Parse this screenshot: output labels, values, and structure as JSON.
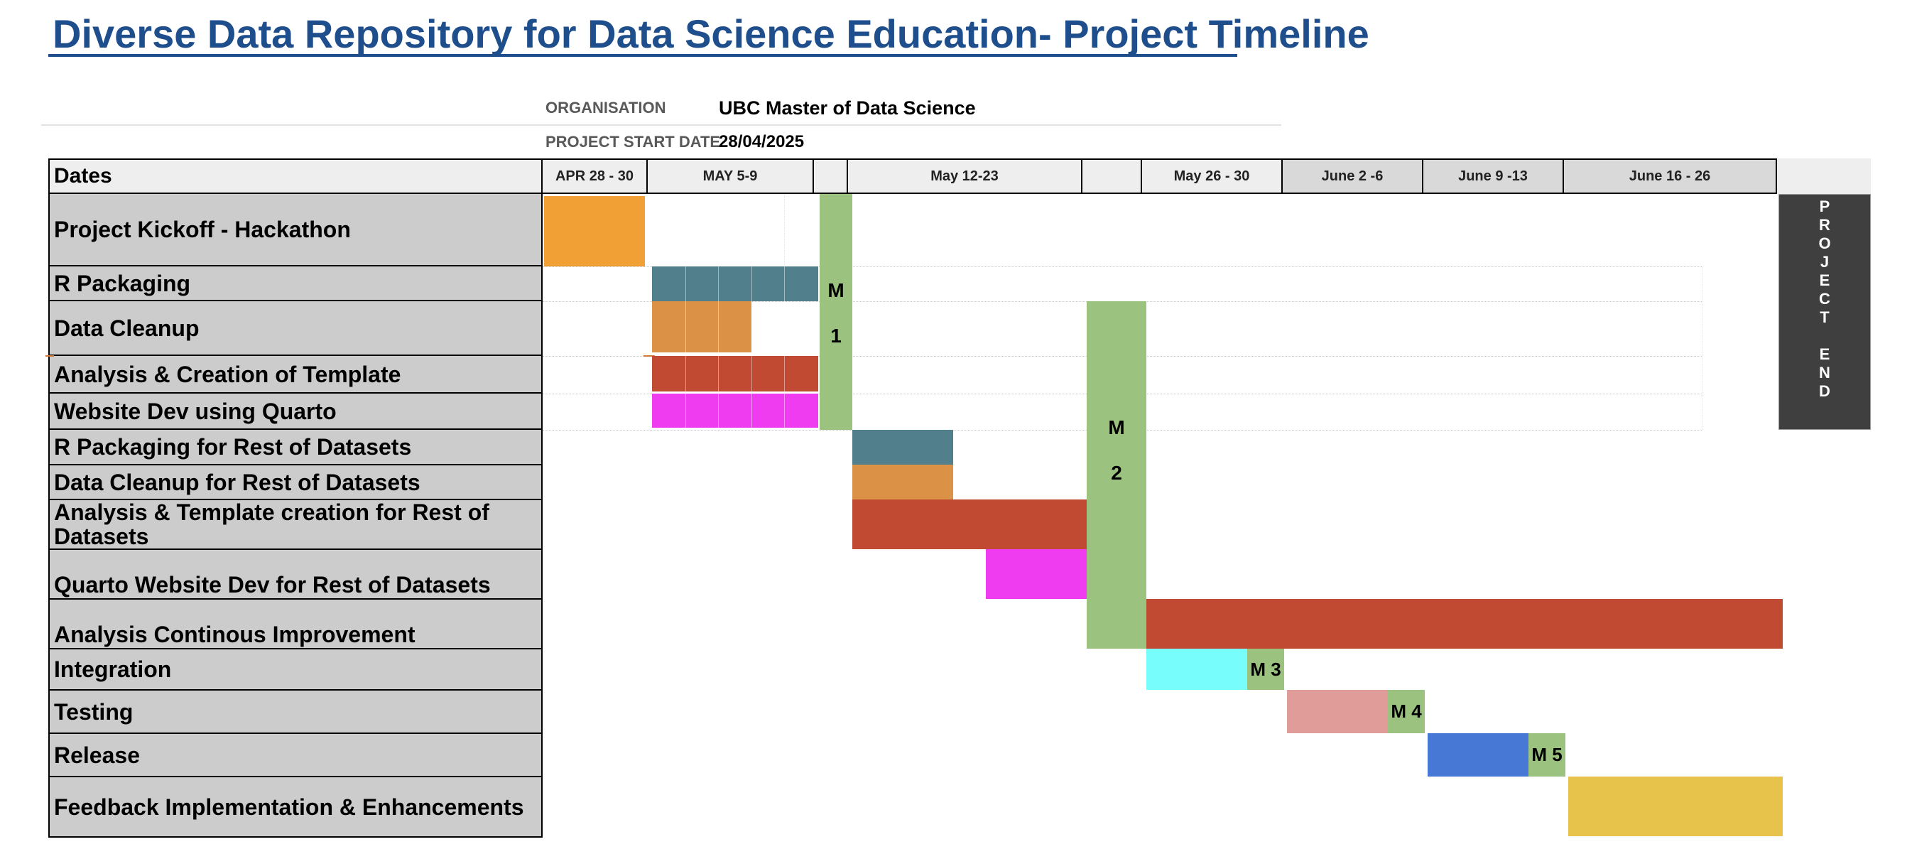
{
  "title": "Diverse Data Repository for Data Science Education- Project Timeline",
  "meta": {
    "org_label": "ORGANISATION",
    "org_value": "UBC Master of Data Science",
    "start_label": "PROJECT START DATE",
    "start_value": "28/04/2025"
  },
  "header": {
    "dates": "Dates",
    "periods": [
      "APR 28 - 30",
      "MAY 5-9",
      "",
      "May 12-23",
      "",
      "May 26 - 30",
      "June 2 -6",
      "June 9 -13",
      "June 16 - 26",
      ""
    ]
  },
  "tasks": [
    "Project Kickoff - Hackathon",
    "R Packaging",
    "Data Cleanup",
    "Analysis & Creation of Template",
    "Website Dev using Quarto",
    "R Packaging for Rest of Datasets",
    "Data Cleanup for Rest of Datasets",
    "Analysis & Template creation for Rest of Datasets",
    "Quarto Website Dev for Rest of Datasets",
    "Analysis Continous Improvement",
    "Integration",
    "Testing",
    "Release",
    "Feedback Implementation & Enhancements"
  ],
  "milestones": {
    "m1_a": "M",
    "m1_b": "1",
    "m2_a": "M",
    "m2_b": "2",
    "m3": "M 3",
    "m4": "M 4",
    "m5": "M 5"
  },
  "project_end": "P\nR\nO\nJ\nE\nC\nT\n\nE\nN\nD",
  "chart_data": {
    "type": "gantt",
    "title": "Diverse Data Repository for Data Science Education- Project Timeline",
    "periods": [
      "APR 28 - 30",
      "MAY 5-9",
      "May 12-23",
      "May 26 - 30",
      "June 2 -6",
      "June 9 -13",
      "June 16 - 26"
    ],
    "colors": {
      "kickoff": "#f0a035",
      "packaging": "#527f8c",
      "cleanup": "#dc9246",
      "analysis": "#c04a32",
      "website": "#f03cf0",
      "integration": "#76fdfc",
      "testing": "#e09c98",
      "release": "#4878d6",
      "feedback": "#e8c34c",
      "milestone": "#9bc27f",
      "project_end": "#3f3f3f"
    }
  }
}
